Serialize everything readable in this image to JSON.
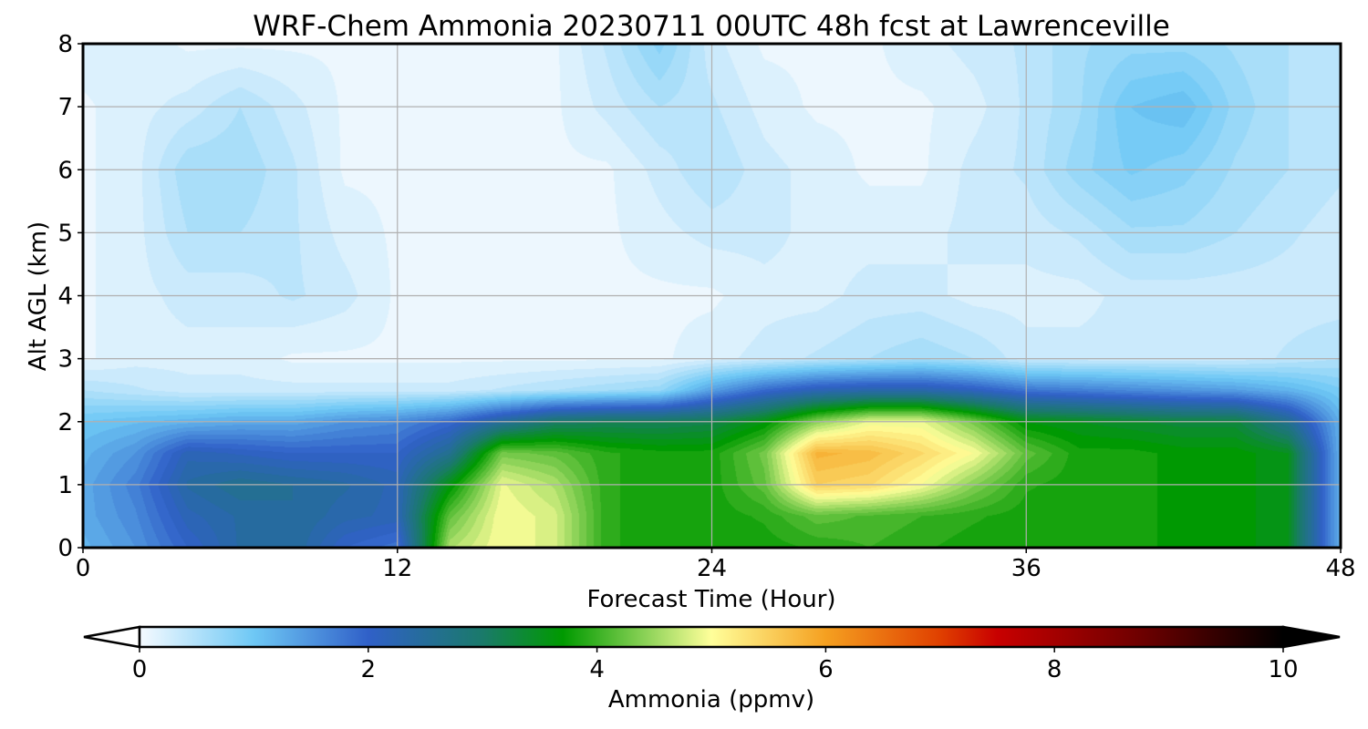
{
  "chart_data": {
    "type": "heatmap",
    "title": "WRF-Chem Ammonia  20230711 00UTC 48h fcst at Lawrenceville",
    "xlabel": "Forecast Time (Hour)",
    "ylabel": "Alt AGL (km)",
    "xlim": [
      0,
      48
    ],
    "ylim": [
      0,
      8
    ],
    "xticks": [
      0,
      12,
      24,
      36,
      48
    ],
    "yticks": [
      0,
      1,
      2,
      3,
      4,
      5,
      6,
      7,
      8
    ],
    "grid": true,
    "colorbar": {
      "label": "Ammonia  (ppmv)",
      "min": 0,
      "max": 10,
      "ticks": [
        0,
        2,
        4,
        6,
        8,
        10
      ],
      "extend": "both",
      "colors": [
        {
          "value": 0,
          "color": "#f5faff"
        },
        {
          "value": 1,
          "color": "#6ec8f5"
        },
        {
          "value": 2,
          "color": "#3060c8"
        },
        {
          "value": 3,
          "color": "#1a7a6a"
        },
        {
          "value": 3.7,
          "color": "#009a00"
        },
        {
          "value": 4.5,
          "color": "#9ad860"
        },
        {
          "value": 5,
          "color": "#ffff9a"
        },
        {
          "value": 6,
          "color": "#f5a020"
        },
        {
          "value": 7,
          "color": "#e04000"
        },
        {
          "value": 7.5,
          "color": "#c80000"
        },
        {
          "value": 8.8,
          "color": "#6a0000"
        },
        {
          "value": 10,
          "color": "#000000"
        }
      ]
    },
    "x": [
      0,
      2,
      4,
      6,
      8,
      10,
      12,
      14,
      16,
      18,
      20,
      22,
      24,
      26,
      28,
      30,
      32,
      34,
      36,
      38,
      40,
      42,
      44,
      46,
      48
    ],
    "y": [
      0,
      0.5,
      1,
      1.5,
      2,
      2.5,
      3,
      4,
      5,
      6,
      7,
      8
    ],
    "z": [
      [
        1.2,
        1.5,
        2.0,
        2.4,
        2.5,
        2.0,
        1.8,
        4.6,
        5.0,
        4.8,
        3.9,
        3.8,
        3.8,
        3.8,
        3.9,
        4.0,
        3.9,
        3.8,
        3.8,
        3.8,
        3.8,
        3.7,
        3.7,
        3.5,
        1.2
      ],
      [
        1.3,
        1.6,
        2.2,
        2.4,
        2.5,
        2.3,
        2.2,
        4.2,
        5.0,
        4.8,
        3.9,
        3.8,
        3.8,
        3.9,
        4.2,
        4.1,
        4.0,
        3.9,
        3.8,
        3.8,
        3.8,
        3.7,
        3.7,
        3.5,
        1.2
      ],
      [
        1.3,
        1.7,
        2.4,
        2.6,
        2.5,
        2.4,
        2.2,
        3.6,
        4.9,
        4.6,
        3.9,
        3.8,
        3.8,
        4.2,
        5.5,
        5.4,
        5.0,
        4.4,
        3.9,
        3.8,
        3.8,
        3.7,
        3.7,
        3.5,
        1.2
      ],
      [
        1.2,
        1.5,
        2.2,
        2.1,
        2.0,
        2.0,
        2.0,
        2.6,
        4.3,
        4.2,
        3.9,
        3.8,
        3.8,
        4.3,
        5.8,
        5.7,
        5.4,
        5.0,
        4.2,
        3.8,
        3.8,
        3.7,
        3.7,
        3.5,
        1.2
      ],
      [
        1.0,
        1.1,
        1.2,
        1.3,
        1.3,
        1.5,
        1.6,
        1.9,
        2.5,
        3.0,
        3.1,
        3.1,
        3.2,
        3.6,
        4.4,
        4.9,
        4.9,
        4.3,
        3.6,
        3.5,
        3.4,
        3.3,
        3.3,
        2.6,
        1.2
      ],
      [
        0.5,
        0.4,
        0.3,
        0.3,
        0.3,
        0.3,
        0.3,
        0.3,
        0.4,
        0.5,
        0.6,
        0.7,
        1.4,
        1.9,
        2.2,
        2.3,
        2.3,
        2.1,
        1.8,
        1.7,
        1.6,
        1.5,
        1.4,
        1.2,
        0.9
      ],
      [
        0.1,
        0.2,
        0.2,
        0.2,
        0.1,
        0.1,
        0.1,
        0.1,
        0.1,
        0.1,
        0.1,
        0.1,
        0.2,
        0.3,
        0.4,
        0.5,
        0.6,
        0.5,
        0.3,
        0.3,
        0.3,
        0.3,
        0.3,
        0.4,
        0.5
      ],
      [
        0.1,
        0.2,
        0.3,
        0.3,
        0.4,
        0.3,
        0.1,
        0.1,
        0.1,
        0.1,
        0.1,
        0.1,
        0.1,
        0.2,
        0.2,
        0.3,
        0.3,
        0.2,
        0.2,
        0.2,
        0.3,
        0.3,
        0.3,
        0.3,
        0.3
      ],
      [
        0.1,
        0.2,
        0.5,
        0.5,
        0.4,
        0.2,
        0.1,
        0.1,
        0.1,
        0.1,
        0.1,
        0.2,
        0.3,
        0.3,
        0.2,
        0.2,
        0.2,
        0.3,
        0.3,
        0.4,
        0.6,
        0.6,
        0.5,
        0.4,
        0.3
      ],
      [
        0.1,
        0.2,
        0.6,
        0.6,
        0.4,
        0.1,
        0.1,
        0.1,
        0.1,
        0.1,
        0.1,
        0.3,
        0.5,
        0.3,
        0.2,
        0.1,
        0.1,
        0.3,
        0.4,
        0.7,
        0.9,
        0.8,
        0.6,
        0.5,
        0.4
      ],
      [
        0.1,
        0.2,
        0.3,
        0.5,
        0.3,
        0.1,
        0.1,
        0.1,
        0.1,
        0.1,
        0.3,
        0.5,
        0.4,
        0.2,
        0.1,
        0.1,
        0.1,
        0.2,
        0.4,
        0.6,
        1.0,
        1.1,
        0.7,
        0.5,
        0.4
      ],
      [
        0.2,
        0.2,
        0.1,
        0.1,
        0.1,
        0.1,
        0.1,
        0.1,
        0.1,
        0.1,
        0.4,
        0.8,
        0.3,
        0.1,
        0.1,
        0.1,
        0.2,
        0.3,
        0.4,
        0.6,
        0.7,
        0.7,
        0.6,
        0.5,
        0.4
      ]
    ]
  }
}
